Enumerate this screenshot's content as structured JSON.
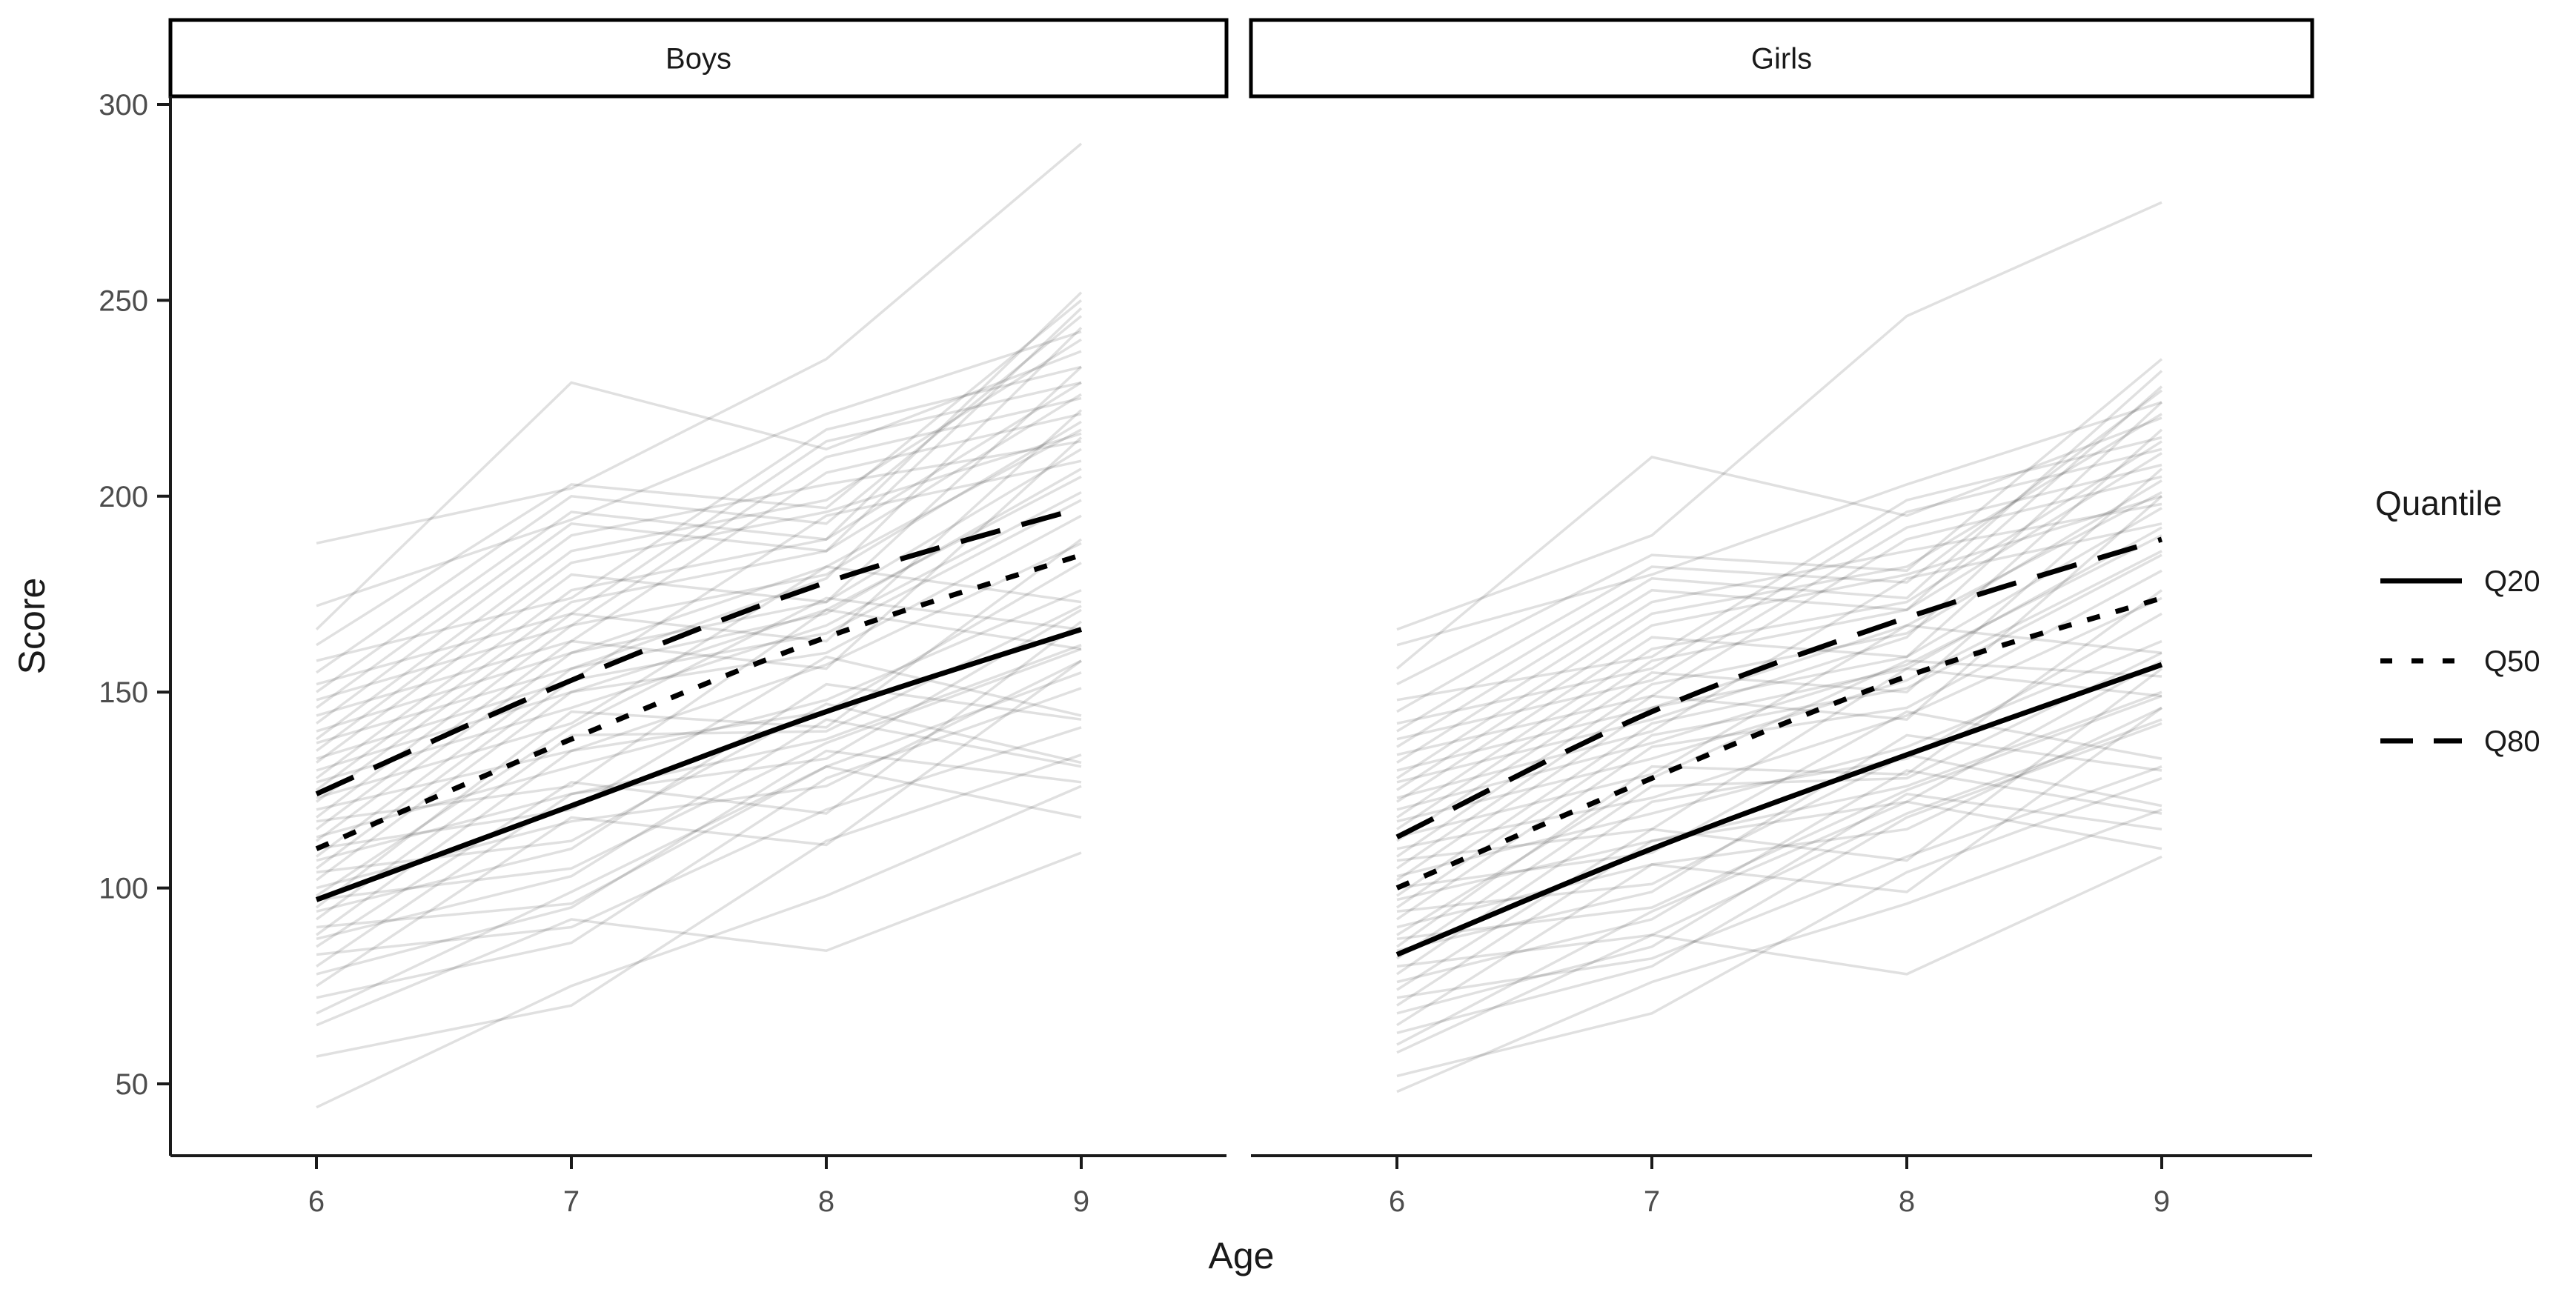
{
  "chart_data": {
    "type": "line",
    "title": "",
    "xlabel": "Age",
    "ylabel": "Score",
    "x": [
      6,
      7,
      8,
      9
    ],
    "x_tick_labels": [
      "6",
      "7",
      "8",
      "9"
    ],
    "y_ticks": [
      300,
      250,
      200,
      150,
      100,
      50
    ],
    "y_tick_labels": [
      "300",
      "250",
      "200",
      "150",
      "100",
      "50"
    ],
    "xlim": [
      5.45,
      9.55
    ],
    "ylim": [
      32,
      302
    ],
    "grid": "off",
    "legend": {
      "title": "Quantile",
      "position": "right",
      "entries": [
        {
          "label": "Q20",
          "linetype": "solid"
        },
        {
          "label": "Q50",
          "linetype": "dotted"
        },
        {
          "label": "Q80",
          "linetype": "dashed"
        }
      ]
    },
    "colors": {
      "quantile_line": "#000000",
      "individual_line": "#000000",
      "individual_line_opacity": 0.12,
      "axis_text": "#4d4d4d",
      "axis_line": "#1a1a1a",
      "strip_border": "#000000",
      "strip_fill": "#ffffff",
      "background": "#ffffff"
    },
    "facets": [
      {
        "label": "Boys",
        "quantiles": {
          "Q20": [
            97,
            121,
            145,
            166
          ],
          "Q50": [
            110,
            138,
            164,
            185
          ],
          "Q80": [
            124,
            153,
            178,
            197
          ]
        },
        "individual_lines": [
          [
            44,
            75,
            98,
            126
          ],
          [
            57,
            70,
            112,
            134
          ],
          [
            65,
            92,
            84,
            109
          ],
          [
            68,
            99,
            131,
            118
          ],
          [
            72,
            86,
            128,
            151
          ],
          [
            75,
            118,
            111,
            158
          ],
          [
            78,
            95,
            135,
            127
          ],
          [
            80,
            124,
            138,
            162
          ],
          [
            83,
            90,
            120,
            141
          ],
          [
            85,
            127,
            119,
            168
          ],
          [
            87,
            103,
            143,
            131
          ],
          [
            88,
            135,
            145,
            183
          ],
          [
            90,
            96,
            131,
            155
          ],
          [
            92,
            139,
            140,
            172
          ],
          [
            94,
            110,
            152,
            143
          ],
          [
            95,
            145,
            141,
            189
          ],
          [
            97,
            105,
            137,
            161
          ],
          [
            98,
            141,
            174,
            166
          ],
          [
            100,
            117,
            126,
            158
          ],
          [
            102,
            150,
            160,
            195
          ],
          [
            104,
            112,
            147,
            132
          ],
          [
            105,
            153,
            165,
            199
          ],
          [
            107,
            124,
            133,
            171
          ],
          [
            108,
            156,
            170,
            207
          ],
          [
            110,
            120,
            159,
            144
          ],
          [
            112,
            160,
            173,
            212
          ],
          [
            113,
            131,
            148,
            176
          ],
          [
            115,
            163,
            156,
            215
          ],
          [
            117,
            126,
            171,
            161
          ],
          [
            118,
            167,
            180,
            219
          ],
          [
            120,
            135,
            157,
            188
          ],
          [
            122,
            170,
            163,
            222
          ],
          [
            123,
            142,
            182,
            173
          ],
          [
            125,
            173,
            186,
            226
          ],
          [
            127,
            146,
            167,
            201
          ],
          [
            128,
            176,
            189,
            229
          ],
          [
            130,
            150,
            171,
            205
          ],
          [
            132,
            180,
            173,
            233
          ],
          [
            133,
            153,
            195,
            209
          ],
          [
            135,
            183,
            196,
            216
          ],
          [
            137,
            156,
            179,
            243
          ],
          [
            138,
            186,
            199,
            240
          ],
          [
            140,
            160,
            182,
            217
          ],
          [
            142,
            190,
            203,
            214
          ],
          [
            144,
            163,
            206,
            221
          ],
          [
            146,
            193,
            186,
            248
          ],
          [
            148,
            167,
            210,
            225
          ],
          [
            150,
            196,
            189,
            252
          ],
          [
            152,
            170,
            214,
            229
          ],
          [
            155,
            200,
            193,
            246
          ],
          [
            158,
            174,
            217,
            233
          ],
          [
            162,
            203,
            197,
            250
          ],
          [
            166,
            229,
            212,
            237
          ],
          [
            172,
            194,
            221,
            242
          ],
          [
            188,
            202,
            235,
            290
          ]
        ]
      },
      {
        "label": "Girls",
        "quantiles": {
          "Q20": [
            83,
            110,
            134,
            157
          ],
          "Q50": [
            100,
            128,
            154,
            174
          ],
          "Q80": [
            113,
            145,
            169,
            189
          ]
        },
        "individual_lines": [
          [
            48,
            76,
            96,
            120
          ],
          [
            52,
            68,
            104,
            128
          ],
          [
            58,
            88,
            78,
            108
          ],
          [
            60,
            94,
            122,
            110
          ],
          [
            63,
            80,
            118,
            142
          ],
          [
            65,
            106,
            99,
            146
          ],
          [
            68,
            85,
            124,
            115
          ],
          [
            70,
            112,
            126,
            150
          ],
          [
            72,
            82,
            108,
            131
          ],
          [
            74,
            115,
            107,
            156
          ],
          [
            76,
            92,
            130,
            119
          ],
          [
            78,
            122,
            133,
            170
          ],
          [
            80,
            88,
            119,
            143
          ],
          [
            82,
            126,
            128,
            160
          ],
          [
            84,
            99,
            139,
            130
          ],
          [
            85,
            131,
            129,
            176
          ],
          [
            87,
            95,
            125,
            149
          ],
          [
            88,
            128,
            158,
            154
          ],
          [
            90,
            106,
            115,
            146
          ],
          [
            92,
            136,
            146,
            181
          ],
          [
            94,
            101,
            134,
            121
          ],
          [
            95,
            139,
            151,
            185
          ],
          [
            97,
            112,
            122,
            158
          ],
          [
            98,
            142,
            156,
            192
          ],
          [
            100,
            109,
            145,
            133
          ],
          [
            102,
            146,
            159,
            197
          ],
          [
            103,
            119,
            136,
            163
          ],
          [
            105,
            149,
            143,
            200
          ],
          [
            107,
            115,
            156,
            149
          ],
          [
            108,
            152,
            165,
            204
          ],
          [
            110,
            123,
            144,
            174
          ],
          [
            112,
            155,
            150,
            207
          ],
          [
            113,
            129,
            167,
            160
          ],
          [
            115,
            158,
            171,
            211
          ],
          [
            117,
            133,
            153,
            186
          ],
          [
            118,
            161,
            173,
            214
          ],
          [
            120,
            137,
            157,
            190
          ],
          [
            122,
            164,
            159,
            217
          ],
          [
            123,
            140,
            179,
            193
          ],
          [
            125,
            167,
            180,
            200
          ],
          [
            127,
            143,
            164,
            224
          ],
          [
            128,
            170,
            182,
            221
          ],
          [
            130,
            146,
            167,
            201
          ],
          [
            132,
            173,
            186,
            198
          ],
          [
            134,
            149,
            189,
            205
          ],
          [
            136,
            176,
            171,
            228
          ],
          [
            138,
            153,
            192,
            208
          ],
          [
            140,
            179,
            174,
            232
          ],
          [
            142,
            156,
            196,
            212
          ],
          [
            145,
            182,
            178,
            227
          ],
          [
            148,
            159,
            199,
            215
          ],
          [
            152,
            185,
            181,
            235
          ],
          [
            156,
            210,
            195,
            220
          ],
          [
            162,
            180,
            203,
            224
          ],
          [
            166,
            190,
            246,
            275
          ]
        ]
      }
    ]
  }
}
